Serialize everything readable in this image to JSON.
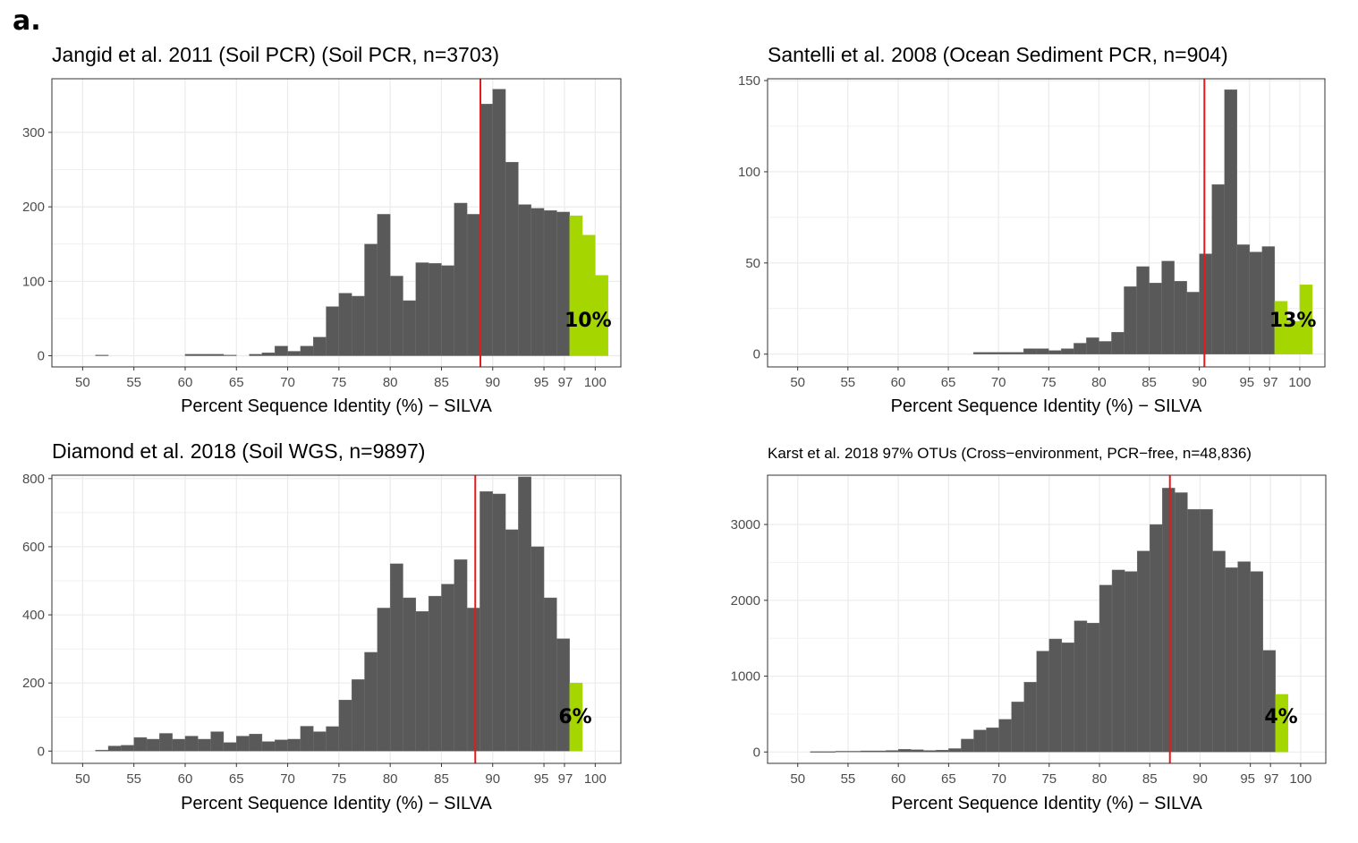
{
  "figure_label": "a.",
  "chart_data": [
    {
      "type": "bar",
      "title": "Jangid et al. 2011 (Soil PCR) (Soil PCR, n=3703)",
      "xlabel": "Percent Sequence Identity (%) − SILVA",
      "ylabel": "",
      "xlim": [
        47,
        102.5
      ],
      "ylim": [
        -15,
        372
      ],
      "xticks": [
        50,
        55,
        60,
        65,
        70,
        75,
        80,
        85,
        90,
        95,
        97,
        100
      ],
      "yticks": [
        0,
        100,
        200,
        300
      ],
      "bin_width": 1.25,
      "bin_start": 50,
      "values": [
        0,
        1,
        0,
        0,
        0,
        0,
        0,
        0,
        2,
        2,
        2,
        1,
        0,
        2,
        4,
        13,
        6,
        13,
        25,
        66,
        84,
        80,
        150,
        190,
        107,
        74,
        125,
        124,
        121,
        205,
        190,
        338,
        358,
        260,
        203,
        198,
        195,
        193,
        188,
        162,
        108
      ],
      "highlight_from": 97,
      "median_line": 88.8,
      "pct_label": "10%",
      "colors": {
        "bar": "#595959",
        "highlight": "#a5d600",
        "median": "#e41a1c",
        "grid": "#ebebeb"
      }
    },
    {
      "type": "bar",
      "title": "Santelli et al. 2008 (Ocean Sediment PCR, n=904)",
      "xlabel": "Percent Sequence Identity (%) − SILVA",
      "ylabel": "",
      "xlim": [
        47,
        102.5
      ],
      "ylim": [
        -7,
        151
      ],
      "xticks": [
        50,
        55,
        60,
        65,
        70,
        75,
        80,
        85,
        90,
        95,
        97,
        100
      ],
      "yticks": [
        0,
        50,
        100,
        150
      ],
      "bin_width": 1.25,
      "bin_start": 50,
      "values": [
        0,
        0,
        0,
        0,
        0,
        0,
        0,
        0,
        0,
        0,
        0,
        0,
        0,
        0,
        1,
        1,
        1,
        1,
        3,
        3,
        2,
        3,
        6,
        9,
        7,
        12,
        37,
        48,
        39,
        51,
        40,
        34,
        55,
        93,
        145,
        60,
        56,
        59,
        29,
        18,
        38
      ],
      "highlight_from": 97,
      "median_line": 90.5,
      "pct_label": "13%",
      "colors": {
        "bar": "#595959",
        "highlight": "#a5d600",
        "median": "#e41a1c",
        "grid": "#ebebeb"
      }
    },
    {
      "type": "bar",
      "title": "Diamond et al. 2018 (Soil WGS, n=9897)",
      "xlabel": "Percent Sequence Identity (%) − SILVA",
      "ylabel": "",
      "xlim": [
        47,
        102.5
      ],
      "ylim": [
        -36,
        810
      ],
      "xticks": [
        50,
        55,
        60,
        65,
        70,
        75,
        80,
        85,
        90,
        95,
        97,
        100
      ],
      "yticks": [
        0,
        200,
        400,
        600,
        800
      ],
      "bin_width": 1.25,
      "bin_start": 50,
      "values": [
        0,
        3,
        15,
        17,
        40,
        35,
        52,
        35,
        44,
        35,
        57,
        25,
        44,
        50,
        28,
        33,
        35,
        73,
        57,
        72,
        150,
        210,
        290,
        420,
        550,
        450,
        410,
        455,
        490,
        562,
        420,
        762,
        755,
        650,
        805,
        600,
        450,
        330,
        200
      ],
      "highlight_from": 97,
      "median_line": 88.3,
      "pct_label": "6%",
      "colors": {
        "bar": "#595959",
        "highlight": "#a5d600",
        "median": "#e41a1c",
        "grid": "#ebebeb"
      }
    },
    {
      "type": "bar",
      "title": "Karst et al. 2018 97% OTUs (Cross−environment, PCR−free, n=48,836)",
      "xlabel": "Percent Sequence Identity (%) − SILVA",
      "ylabel": "",
      "xlim": [
        47,
        102.5
      ],
      "ylim": [
        -150,
        3650
      ],
      "xticks": [
        50,
        55,
        60,
        65,
        70,
        75,
        80,
        85,
        90,
        95,
        97,
        100
      ],
      "yticks": [
        0,
        1000,
        2000,
        3000
      ],
      "bin_width": 1.25,
      "bin_start": 50,
      "values": [
        0,
        5,
        5,
        10,
        10,
        15,
        15,
        20,
        35,
        30,
        20,
        25,
        45,
        170,
        290,
        320,
        430,
        660,
        920,
        1330,
        1490,
        1440,
        1730,
        1700,
        2200,
        2400,
        2380,
        2650,
        3000,
        3480,
        3420,
        3200,
        3200,
        2650,
        2430,
        2510,
        2380,
        1340,
        760
      ],
      "highlight_from": 97,
      "median_line": 87.0,
      "pct_label": "4%",
      "colors": {
        "bar": "#595959",
        "highlight": "#a5d600",
        "median": "#e41a1c",
        "grid": "#ebebeb"
      }
    }
  ]
}
